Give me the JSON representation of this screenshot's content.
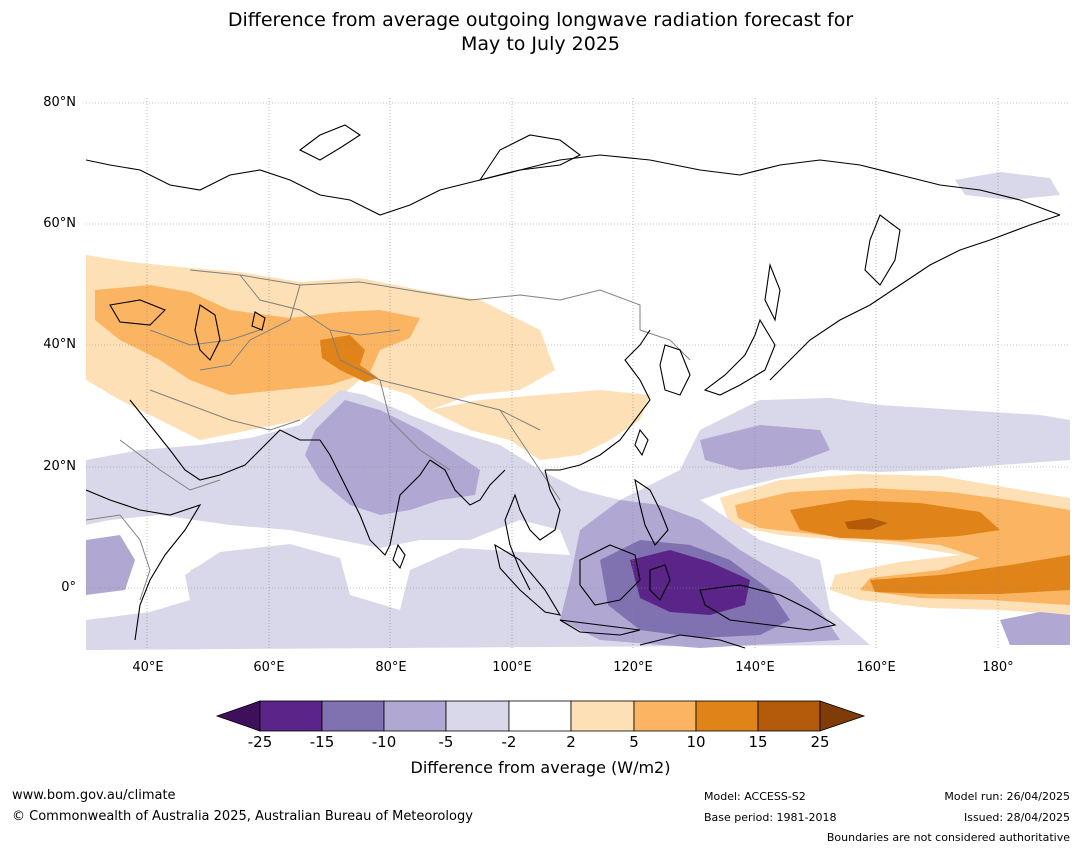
{
  "title": {
    "line1": "Difference from average outgoing longwave radiation forecast for",
    "line2": "May to July 2025"
  },
  "map": {
    "lon_range": [
      30,
      192
    ],
    "lat_range": [
      -10,
      81
    ],
    "gridlines": true,
    "lat_labels": [
      "80°N",
      "60°N",
      "40°N",
      "20°N",
      "0°"
    ],
    "lon_labels": [
      "40°E",
      "60°E",
      "80°E",
      "100°E",
      "120°E",
      "140°E",
      "160°E",
      "180°"
    ]
  },
  "colorbar": {
    "colors": [
      "#3f0f5c",
      "#5a2488",
      "#8071b0",
      "#b0a7d2",
      "#d9d8ea",
      "#ffffff",
      "#fde0b5",
      "#fbb562",
      "#e08318",
      "#b45a0b",
      "#7f3b08"
    ],
    "ticks": [
      "-25",
      "-15",
      "-10",
      "-5",
      "-2",
      "2",
      "5",
      "10",
      "15",
      "25"
    ],
    "label": "Difference from average (W/m2)"
  },
  "footer": {
    "url": "www.bom.gov.au/climate",
    "copyright": "© Commonwealth of Australia 2025, Australian Bureau of Meteorology",
    "model": "Model: ACCESS-S2",
    "base_period": "Base period: 1981-2018",
    "model_run": "Model run: 26/04/2025",
    "issued": "Issued: 28/04/2025",
    "disclaimer": "Boundaries are not considered authoritative"
  }
}
